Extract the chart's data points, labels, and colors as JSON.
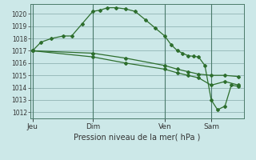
{
  "bg_color": "#cce8e8",
  "grid_color": "#99bbbb",
  "line_color": "#2d6e2d",
  "marker_color": "#2d6e2d",
  "title": "Pression niveau de la mer( hPa )",
  "ylim": [
    1011.5,
    1020.8
  ],
  "yticks": [
    1012,
    1013,
    1014,
    1015,
    1016,
    1017,
    1018,
    1019,
    1020
  ],
  "day_labels": [
    "Jeu",
    "Dim",
    "Ven",
    "Sam"
  ],
  "day_positions": [
    0.0,
    0.285,
    0.625,
    0.845
  ],
  "vline_positions": [
    0.0,
    0.285,
    0.625,
    0.845
  ],
  "series1_x": [
    0.0,
    0.04,
    0.09,
    0.145,
    0.185,
    0.235,
    0.285,
    0.32,
    0.355,
    0.395,
    0.44,
    0.485,
    0.535,
    0.58,
    0.625,
    0.655,
    0.685,
    0.71,
    0.735,
    0.76,
    0.785,
    0.815,
    0.845,
    0.875,
    0.91,
    0.94,
    0.975
  ],
  "series1_y": [
    1017.0,
    1017.7,
    1018.0,
    1018.2,
    1018.2,
    1019.2,
    1020.2,
    1020.3,
    1020.5,
    1020.5,
    1020.4,
    1020.2,
    1019.5,
    1018.85,
    1018.2,
    1017.5,
    1017.0,
    1016.8,
    1016.6,
    1016.55,
    1016.5,
    1015.8,
    1013.0,
    1012.2,
    1012.5,
    1014.2,
    1014.1
  ],
  "series2_x": [
    0.0,
    0.285,
    0.44,
    0.625,
    0.685,
    0.735,
    0.785,
    0.845,
    0.91,
    0.975
  ],
  "series2_y": [
    1017.0,
    1016.8,
    1016.4,
    1015.8,
    1015.5,
    1015.3,
    1015.1,
    1015.0,
    1015.0,
    1014.9
  ],
  "series3_x": [
    0.0,
    0.285,
    0.44,
    0.625,
    0.685,
    0.735,
    0.785,
    0.845,
    0.91,
    0.975
  ],
  "series3_y": [
    1017.0,
    1016.5,
    1016.0,
    1015.5,
    1015.2,
    1015.0,
    1014.8,
    1014.2,
    1014.5,
    1014.2
  ]
}
